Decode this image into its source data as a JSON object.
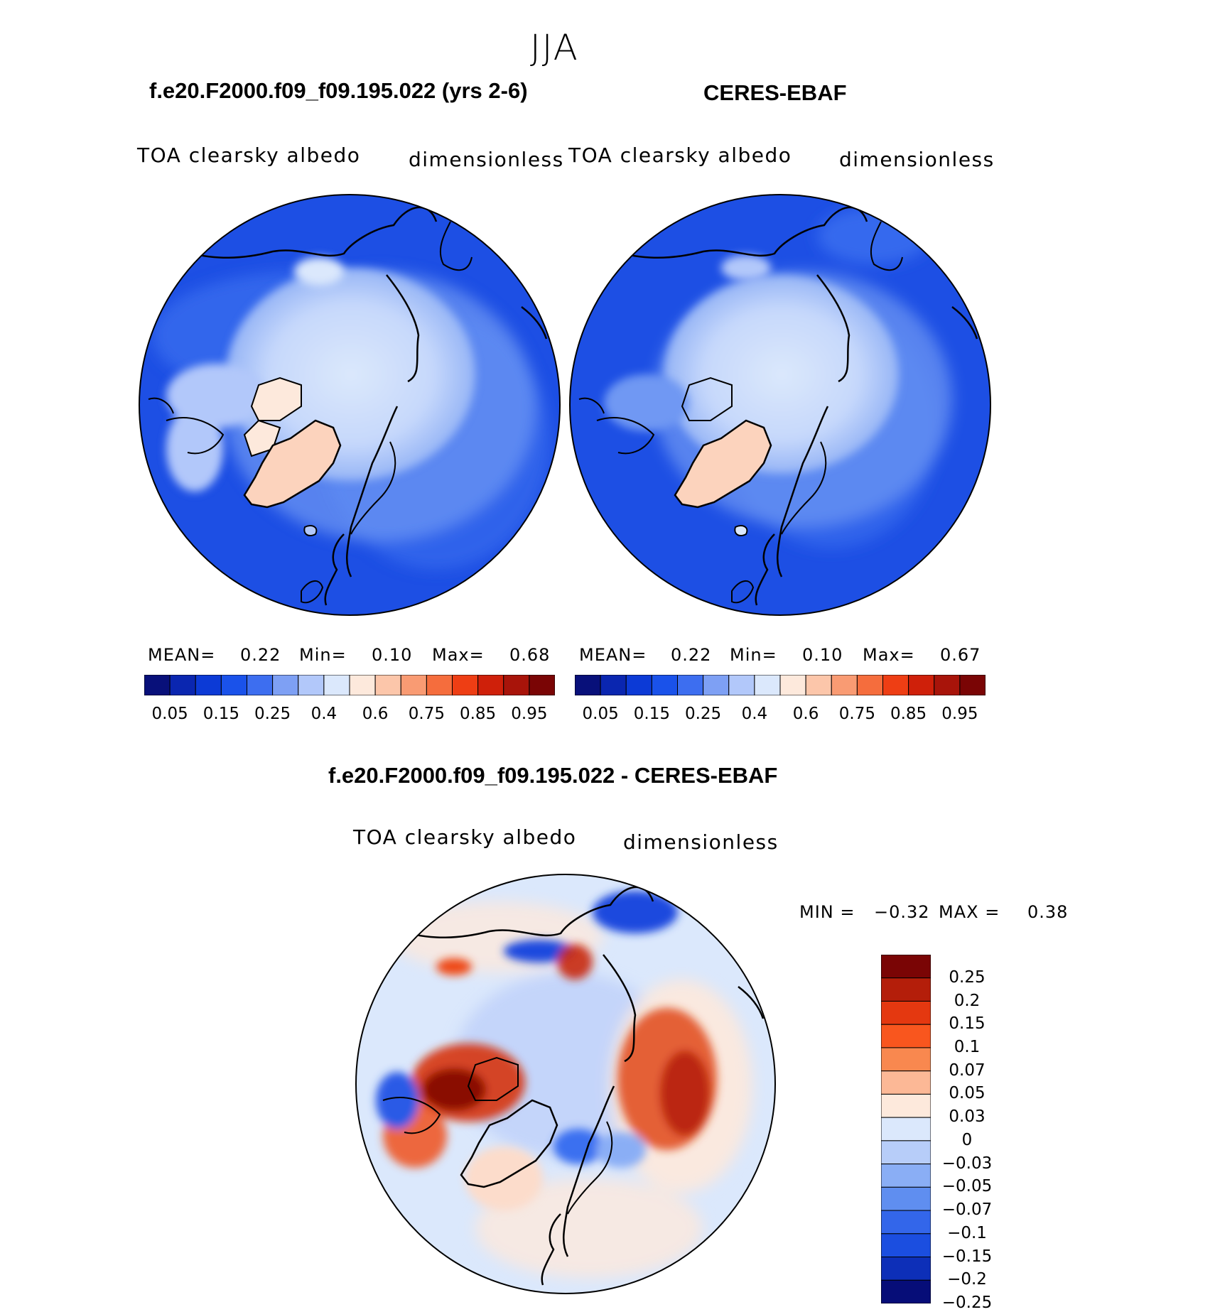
{
  "season": "JJA",
  "panels": [
    {
      "title": "f.e20.F2000.f09_f09.195.022 (yrs 2-6)",
      "variable": "TOA clearsky albedo",
      "units": "dimensionless",
      "mean_label": "MEAN=",
      "mean": "0.22",
      "min_label": "Min=",
      "min": "0.10",
      "max_label": "Max=",
      "max": "0.68"
    },
    {
      "title": "CERES-EBAF",
      "variable": "TOA clearsky albedo",
      "units": "dimensionless",
      "mean_label": "MEAN=",
      "mean": "0.22",
      "min_label": "Min=",
      "min": "0.10",
      "max_label": "Max=",
      "max": "0.67"
    }
  ],
  "colorbar": {
    "colors": [
      "#08107a",
      "#0a26b0",
      "#0c3ad6",
      "#1a52ea",
      "#3d6ef0",
      "#7ea0f4",
      "#b2c8fa",
      "#dbe8fc",
      "#fde9dc",
      "#fcc6aa",
      "#f99b73",
      "#f56d3d",
      "#ee3e14",
      "#cf200a",
      "#a8140a",
      "#7a0505"
    ],
    "ticks": [
      "0.05",
      "0.15",
      "0.25",
      "0.4",
      "0.6",
      "0.75",
      "0.85",
      "0.95"
    ]
  },
  "diff": {
    "title": "f.e20.F2000.f09_f09.195.022 - CERES-EBAF",
    "variable": "TOA clearsky albedo",
    "units": "dimensionless",
    "min_label": "MIN =",
    "min": "−0.32",
    "max_label": "MAX =",
    "max": "0.38",
    "colorbar": {
      "colors": [
        "#7a0505",
        "#b41e0a",
        "#e43810",
        "#f9561e",
        "#f9884f",
        "#fcb896",
        "#fde9dc",
        "#dbe8fc",
        "#b7cdf9",
        "#8aaef5",
        "#5f8ef0",
        "#3366ea",
        "#1b4ee0",
        "#0d2fb8",
        "#060d78"
      ],
      "labels": [
        "0.25",
        "0.2",
        "0.15",
        "0.1",
        "0.07",
        "0.05",
        "0.03",
        "0",
        "−0.03",
        "−0.05",
        "−0.07",
        "−0.1",
        "−0.15",
        "−0.2",
        "−0.25"
      ]
    }
  }
}
